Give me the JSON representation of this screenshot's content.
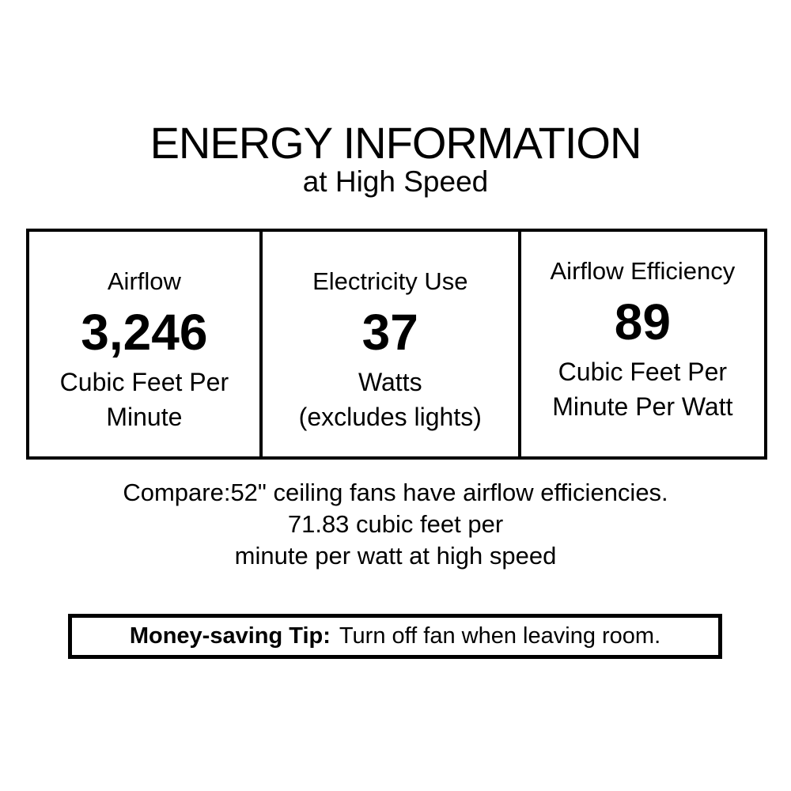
{
  "label": {
    "title": "ENERGY INFORMATION",
    "subtitle": "at High Speed"
  },
  "table": {
    "cells": [
      {
        "header": "Airflow",
        "value": "3,246",
        "units": [
          "Cubic Feet Per",
          "Minute"
        ]
      },
      {
        "header": "Electricity Use",
        "value": "37",
        "units": [
          "Watts",
          "(excludes lights)"
        ]
      },
      {
        "header": "Airflow Efficiency",
        "value": "89",
        "units": [
          "Cubic Feet Per",
          "Minute Per Watt"
        ]
      }
    ]
  },
  "compare": {
    "line1": "Compare:52\" ceiling fans have airflow efficiencies.",
    "line2": "71.83 cubic feet per",
    "line3": "minute per watt at high speed"
  },
  "tip": {
    "label": "Money-saving Tip:",
    "text": "Turn off fan when leaving room."
  },
  "colors": {
    "text": "#000000",
    "background": "#ffffff",
    "border": "#000000"
  }
}
